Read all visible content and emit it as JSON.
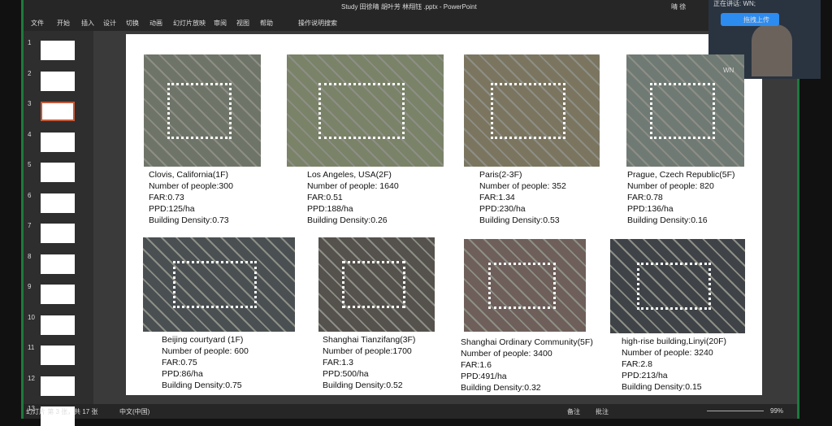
{
  "window": {
    "title": "Study 田徐晴 胡叶芳 林翔钰 .pptx - PowerPoint",
    "user": "晴 徐"
  },
  "ribbon": {
    "tabs": [
      "文件",
      "开始",
      "插入",
      "设计",
      "切换",
      "动画",
      "幻灯片放映",
      "审阅",
      "视图",
      "帮助"
    ],
    "search": "操作说明搜索"
  },
  "thumbnails": [
    "1",
    "2",
    "3",
    "4",
    "5",
    "6",
    "7",
    "8",
    "9",
    "10",
    "11",
    "12",
    "13"
  ],
  "slide": {
    "panels": [
      {
        "lines": [
          "Clovis, California(1F)",
          "Number of people:300",
          "FAR:0.73",
          "PPD:125/ha",
          "Building Density:0.73"
        ]
      },
      {
        "lines": [
          "Los Angeles, USA(2F)",
          "Number of people: 1640",
          "FAR:0.51",
          "PPD:188/ha",
          "Building Density:0.26"
        ]
      },
      {
        "lines": [
          "Paris(2-3F)",
          "Number of people: 352",
          "FAR:1.34",
          "PPD:230/ha",
          "Building Density:0.53"
        ]
      },
      {
        "lines": [
          "Prague, Czech Republic(5F)",
          "Number of people: 820",
          "FAR:0.78",
          "PPD:136/ha",
          "Building Density:0.16"
        ]
      },
      {
        "lines": [
          "Beijing courtyard (1F)",
          "Number of people: 600",
          "FAR:0.75",
          "PPD:86/ha",
          "Building Density:0.75"
        ]
      },
      {
        "lines": [
          "Shanghai Tianzifang(3F)",
          "Number of people:1700",
          "FAR:1.3",
          "PPD:500/ha",
          "Building Density:0.52"
        ]
      },
      {
        "lines": [
          "Shanghai Ordinary Community(5F)",
          "Number of people: 3400",
          "FAR:1.6",
          "PPD:491/ha",
          "Building Density:0.32"
        ]
      },
      {
        "lines": [
          "high-rise building,Linyi(20F)",
          "Number of people: 3240",
          "FAR:2.8",
          "PPD:213/ha",
          "Building Density:0.15"
        ]
      }
    ]
  },
  "video": {
    "speaking": "正在讲话: WN;",
    "upload": "拖拽上传",
    "name": "WN"
  },
  "status": {
    "slide_info": "幻灯片 第 3 张，共 17 张",
    "language": "中文(中国)",
    "notes": "备注",
    "comments": "批注",
    "zoom": "99%"
  }
}
